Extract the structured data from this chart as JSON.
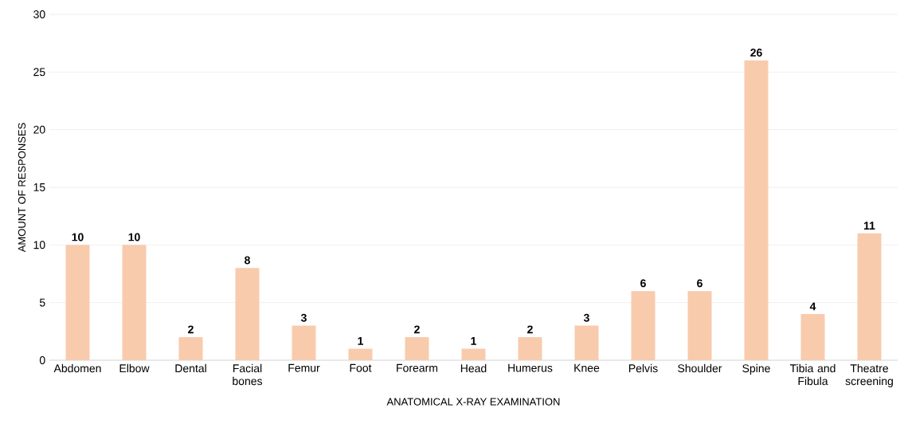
{
  "chart_data": {
    "type": "bar",
    "xlabel": "ANATOMICAL X-RAY EXAMINATION",
    "ylabel": "AMOUNT OF RESPONSES",
    "categories": [
      "Abdomen",
      "Elbow",
      "Dental",
      "Facial bones",
      "Femur",
      "Foot",
      "Forearm",
      "Head",
      "Humerus",
      "Knee",
      "Pelvis",
      "Shoulder",
      "Spine",
      "Tibia and Fibula",
      "Theatre screening"
    ],
    "values": [
      10,
      10,
      2,
      8,
      3,
      1,
      2,
      1,
      2,
      3,
      6,
      6,
      26,
      4,
      11
    ],
    "color": "#f8cbad",
    "ylim": [
      0,
      30
    ],
    "yticks": [
      0,
      5,
      10,
      15,
      20,
      25,
      30
    ],
    "grid": "y",
    "data_labels": true
  }
}
